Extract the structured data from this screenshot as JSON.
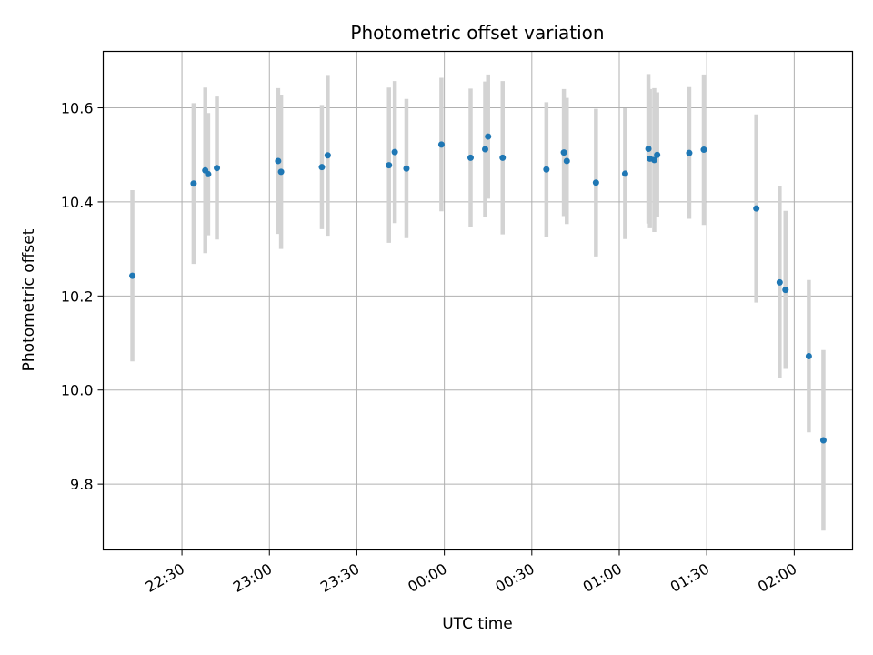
{
  "chart_data": {
    "type": "scatter",
    "title": "Photometric offset variation",
    "xlabel": "UTC time",
    "ylabel": "Photometric offset",
    "x_unit": "time HH:MM (UTC), values past 24:00 are after midnight",
    "xlim": [
      "22:03",
      "24:00+02:20"
    ],
    "ylim": [
      9.66,
      10.72
    ],
    "grid": true,
    "x_ticks": [
      "22:30",
      "23:00",
      "23:30",
      "00:00",
      "00:30",
      "01:00",
      "01:30",
      "02:00"
    ],
    "y_ticks": [
      "9.8",
      "10.0",
      "10.2",
      "10.4",
      "10.6"
    ],
    "colors": {
      "marker": "#1f77b4",
      "errorbar": "#d3d3d3",
      "grid": "#b0b0b0"
    },
    "series": [
      {
        "points": [
          {
            "t": "22:13",
            "y": 10.243,
            "err": 0.182
          },
          {
            "t": "22:34",
            "y": 10.439,
            "err": 0.171
          },
          {
            "t": "22:38",
            "y": 10.467,
            "err": 0.176
          },
          {
            "t": "22:39",
            "y": 10.459,
            "err": 0.13
          },
          {
            "t": "22:42",
            "y": 10.472,
            "err": 0.152
          },
          {
            "t": "23:03",
            "y": 10.487,
            "err": 0.155
          },
          {
            "t": "23:04",
            "y": 10.464,
            "err": 0.164
          },
          {
            "t": "23:18",
            "y": 10.474,
            "err": 0.132
          },
          {
            "t": "23:20",
            "y": 10.499,
            "err": 0.171
          },
          {
            "t": "23:41",
            "y": 10.478,
            "err": 0.165
          },
          {
            "t": "23:43",
            "y": 10.506,
            "err": 0.151
          },
          {
            "t": "23:47",
            "y": 10.471,
            "err": 0.148
          },
          {
            "t": "23:59",
            "y": 10.522,
            "err": 0.142
          },
          {
            "t": "00:09",
            "y": 10.494,
            "err": 0.147
          },
          {
            "t": "00:14",
            "y": 10.512,
            "err": 0.144
          },
          {
            "t": "00:15",
            "y": 10.539,
            "err": 0.132
          },
          {
            "t": "00:20",
            "y": 10.494,
            "err": 0.163
          },
          {
            "t": "00:35",
            "y": 10.469,
            "err": 0.143
          },
          {
            "t": "00:41",
            "y": 10.505,
            "err": 0.135
          },
          {
            "t": "00:42",
            "y": 10.487,
            "err": 0.134
          },
          {
            "t": "00:52",
            "y": 10.441,
            "err": 0.157
          },
          {
            "t": "01:02",
            "y": 10.46,
            "err": 0.139
          },
          {
            "t": "01:10",
            "y": 10.513,
            "err": 0.159
          },
          {
            "t": "01:10:30",
            "y": 10.492,
            "err": 0.148
          },
          {
            "t": "01:12",
            "y": 10.489,
            "err": 0.153
          },
          {
            "t": "01:13",
            "y": 10.5,
            "err": 0.133
          },
          {
            "t": "01:24",
            "y": 10.504,
            "err": 0.14
          },
          {
            "t": "01:29",
            "y": 10.511,
            "err": 0.16
          },
          {
            "t": "01:47",
            "y": 10.386,
            "err": 0.2
          },
          {
            "t": "01:55",
            "y": 10.229,
            "err": 0.204
          },
          {
            "t": "01:57",
            "y": 10.213,
            "err": 0.168
          },
          {
            "t": "02:05",
            "y": 10.072,
            "err": 0.162
          },
          {
            "t": "02:10",
            "y": 9.893,
            "err": 0.192
          }
        ]
      }
    ]
  }
}
